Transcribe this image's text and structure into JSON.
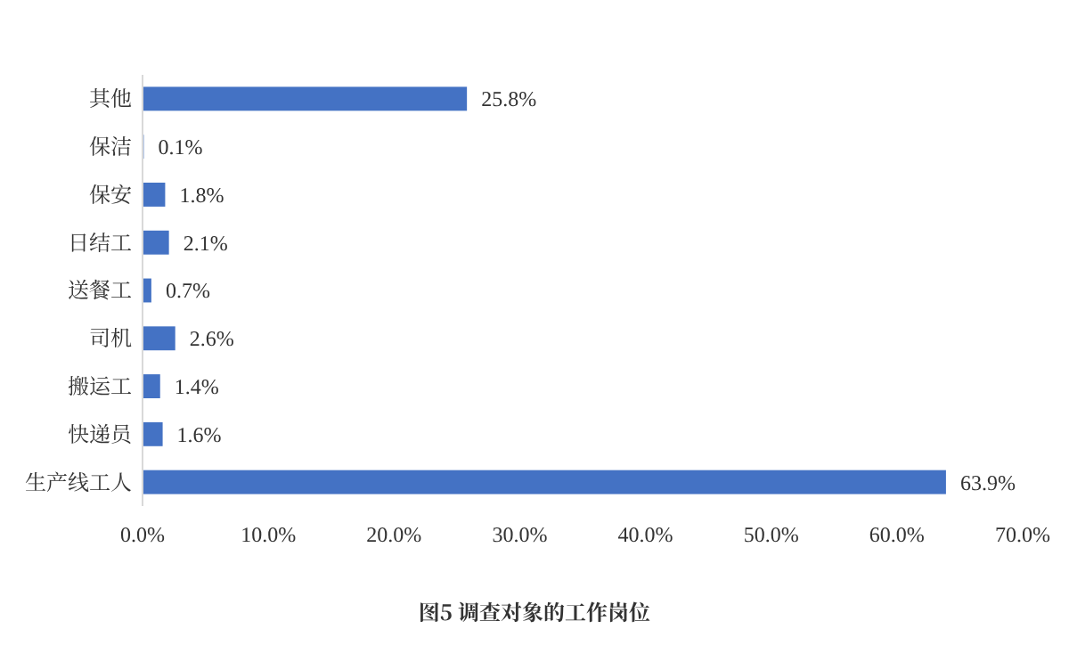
{
  "chart_data": {
    "type": "bar",
    "orientation": "horizontal",
    "title": "图5 调查对象的工作岗位",
    "categories": [
      "其他",
      "保洁",
      "保安",
      "日结工",
      "送餐工",
      "司机",
      "搬运工",
      "快递员",
      "生产线工人"
    ],
    "values": [
      25.8,
      0.1,
      1.8,
      2.1,
      0.7,
      2.6,
      1.4,
      1.6,
      63.9
    ],
    "value_labels": [
      "25.8%",
      "0.1%",
      "1.8%",
      "2.1%",
      "0.7%",
      "2.6%",
      "1.4%",
      "1.6%",
      "63.9%"
    ],
    "color": "#4472c4",
    "xlim": [
      0,
      70
    ],
    "xticks": [
      {
        "value": 0,
        "label": "0.0%"
      },
      {
        "value": 10,
        "label": "10.0%"
      },
      {
        "value": 20,
        "label": "20.0%"
      },
      {
        "value": 30,
        "label": "30.0%"
      },
      {
        "value": 40,
        "label": "40.0%"
      },
      {
        "value": 50,
        "label": "50.0%"
      },
      {
        "value": 60,
        "label": "60.0%"
      },
      {
        "value": 70,
        "label": "70.0%"
      }
    ],
    "grid": false
  }
}
